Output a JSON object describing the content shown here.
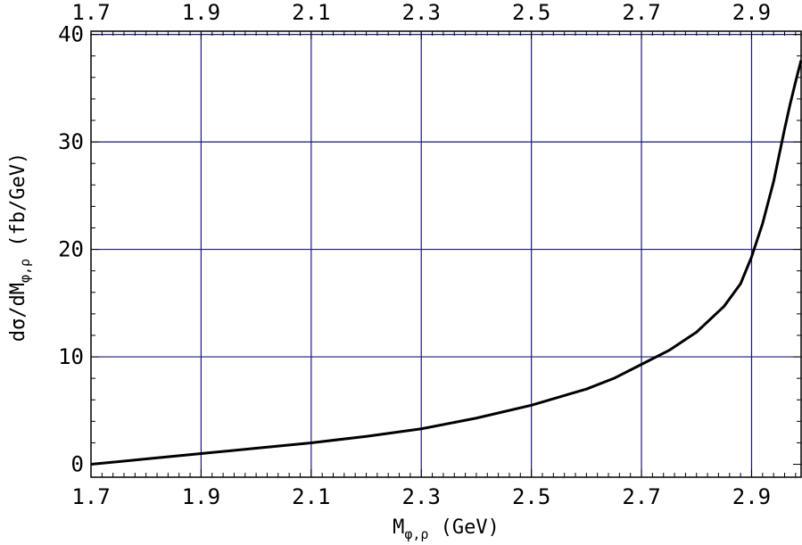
{
  "chart_data": {
    "type": "line",
    "xlabel": {
      "main": "M",
      "sub": "φ,ρ",
      "rest": " (GeV)"
    },
    "ylabel": {
      "pre": "dσ/dM",
      "sub": "φ,ρ",
      "rest": " (fb/GeV)"
    },
    "xlim": [
      1.7,
      2.99
    ],
    "ylim": [
      -1.2,
      40.3
    ],
    "x_ticks": [
      "1.7",
      "1.9",
      "2.1",
      "2.3",
      "2.5",
      "2.7",
      "2.9"
    ],
    "x_tick_values": [
      1.7,
      1.9,
      2.1,
      2.3,
      2.5,
      2.7,
      2.9
    ],
    "y_ticks": [
      "0",
      "10",
      "20",
      "30",
      "40"
    ],
    "y_tick_values": [
      0,
      10,
      20,
      30,
      40
    ],
    "grid": true,
    "colors": {
      "grid": "#1a1a7a",
      "line": "#000000",
      "frame": "#000000"
    },
    "series": [
      {
        "x": [
          1.7,
          1.8,
          1.9,
          2.0,
          2.1,
          2.2,
          2.3,
          2.4,
          2.5,
          2.6,
          2.65,
          2.7,
          2.75,
          2.8,
          2.85,
          2.88,
          2.9,
          2.92,
          2.94,
          2.96,
          2.97,
          2.98,
          2.99
        ],
        "y": [
          0.0,
          0.5,
          1.0,
          1.5,
          2.0,
          2.6,
          3.3,
          4.3,
          5.5,
          7.0,
          8.0,
          9.3,
          10.6,
          12.3,
          14.7,
          16.8,
          19.3,
          22.4,
          26.3,
          31.2,
          33.5,
          35.6,
          37.6
        ]
      }
    ]
  }
}
